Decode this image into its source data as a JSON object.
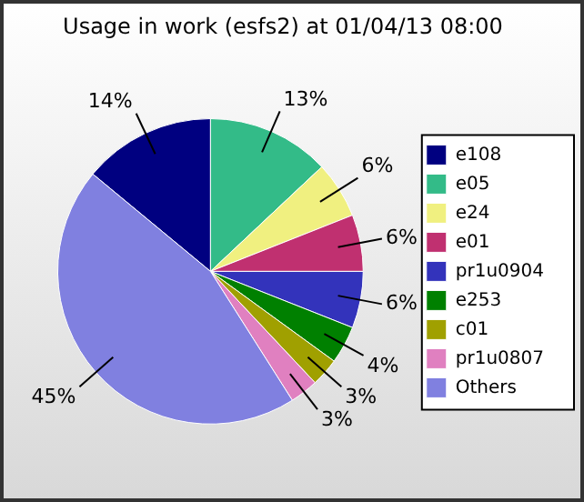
{
  "chart_data": {
    "type": "pie",
    "title": "Usage in work (esfs2) at 01/04/13 08:00",
    "categories": [
      "e108",
      "e05",
      "e24",
      "e01",
      "pr1u0904",
      "e253",
      "c01",
      "pr1u0807",
      "Others"
    ],
    "values": [
      14,
      13,
      6,
      6,
      6,
      4,
      3,
      3,
      45
    ],
    "value_labels": [
      "14%",
      "13%",
      "6%",
      "6%",
      "6%",
      "4%",
      "3%",
      "3%",
      "45%"
    ],
    "colors": [
      "#000080",
      "#33bb88",
      "#f0f080",
      "#c03070",
      "#3333bb",
      "#008000",
      "#a0a000",
      "#e080c0",
      "#8080e0"
    ],
    "legend": "right"
  }
}
